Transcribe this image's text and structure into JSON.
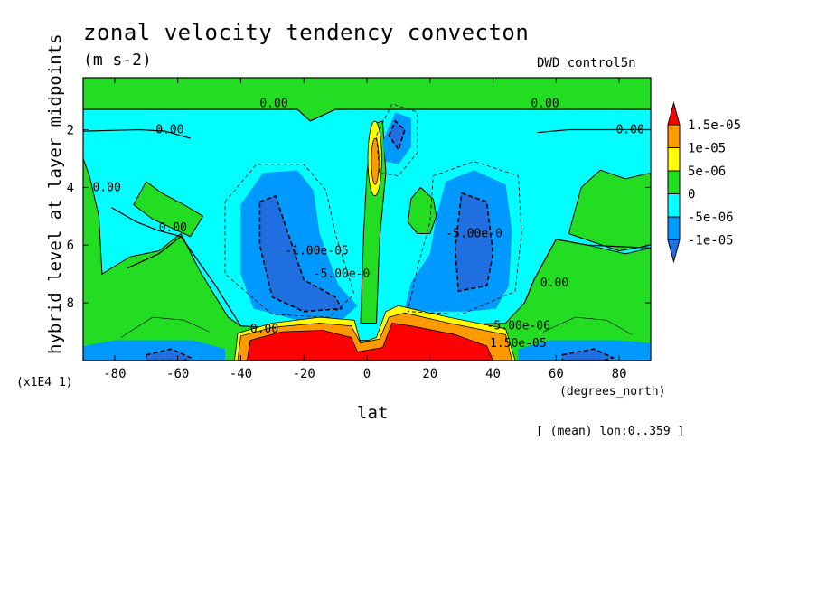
{
  "chart_data": {
    "type": "heatmap",
    "title": "zonal velocity tendency convecton",
    "units": "(m s-2)",
    "dataset": "DWD_control5n",
    "xlabel": "lat",
    "xunits": "(degrees_north)",
    "ylabel": "hybrid level at layer midpoints",
    "yscale_note": "(x1E4 1)",
    "footnote": "[ (mean) lon:0..359 ]",
    "xlim": [
      -90,
      90
    ],
    "ylim": [
      10,
      0.2
    ],
    "xticks": [
      -80,
      -60,
      -40,
      -20,
      0,
      20,
      40,
      60,
      80
    ],
    "yticks": [
      2,
      4,
      6,
      8
    ],
    "colorbar": {
      "levels": [
        "1.5e-05",
        "1e-05",
        "5e-06",
        "0",
        "-5e-06",
        "-1e-05"
      ],
      "colors": [
        "#ff0000",
        "#ff9900",
        "#ffff00",
        "#22dd22",
        "#00ffff",
        "#0099ff",
        "#1f6fe0"
      ]
    },
    "colors": {
      "top_layer": "#22dd22",
      "background": "#00ffff",
      "neg_moderate": "#0099ff",
      "neg_strong": "#1f6fe0",
      "pos_weak": "#22dd22",
      "pos_moderate": "#ffff00",
      "pos_high": "#ff9900",
      "pos_strong": "#ff0000"
    },
    "contour_labels": [
      {
        "text": "0.00",
        "lat": -34,
        "lev": 1.1
      },
      {
        "text": "0.00",
        "lat": 52,
        "lev": 1.1
      },
      {
        "text": "0.00",
        "lat": -67,
        "lev": 2.0
      },
      {
        "text": "0.00",
        "lat": 79,
        "lev": 2.0
      },
      {
        "text": "0.00",
        "lat": -87,
        "lev": 4.0
      },
      {
        "text": "0.00",
        "lat": -66,
        "lev": 5.4
      },
      {
        "text": "0.00",
        "lat": -37,
        "lev": 8.9
      },
      {
        "text": "0.00",
        "lat": 55,
        "lev": 7.3
      },
      {
        "text": "-1.00e-05",
        "lat": -26,
        "lev": 6.2
      },
      {
        "text": "-5.00e-0",
        "lat": -17,
        "lev": 7.0
      },
      {
        "text": "-5.00e-0",
        "lat": 25,
        "lev": 5.6
      },
      {
        "text": "-5.00e-06",
        "lat": 38,
        "lev": 8.8
      },
      {
        "text": "1.50e-05",
        "lat": 39,
        "lev": 9.4
      }
    ]
  }
}
